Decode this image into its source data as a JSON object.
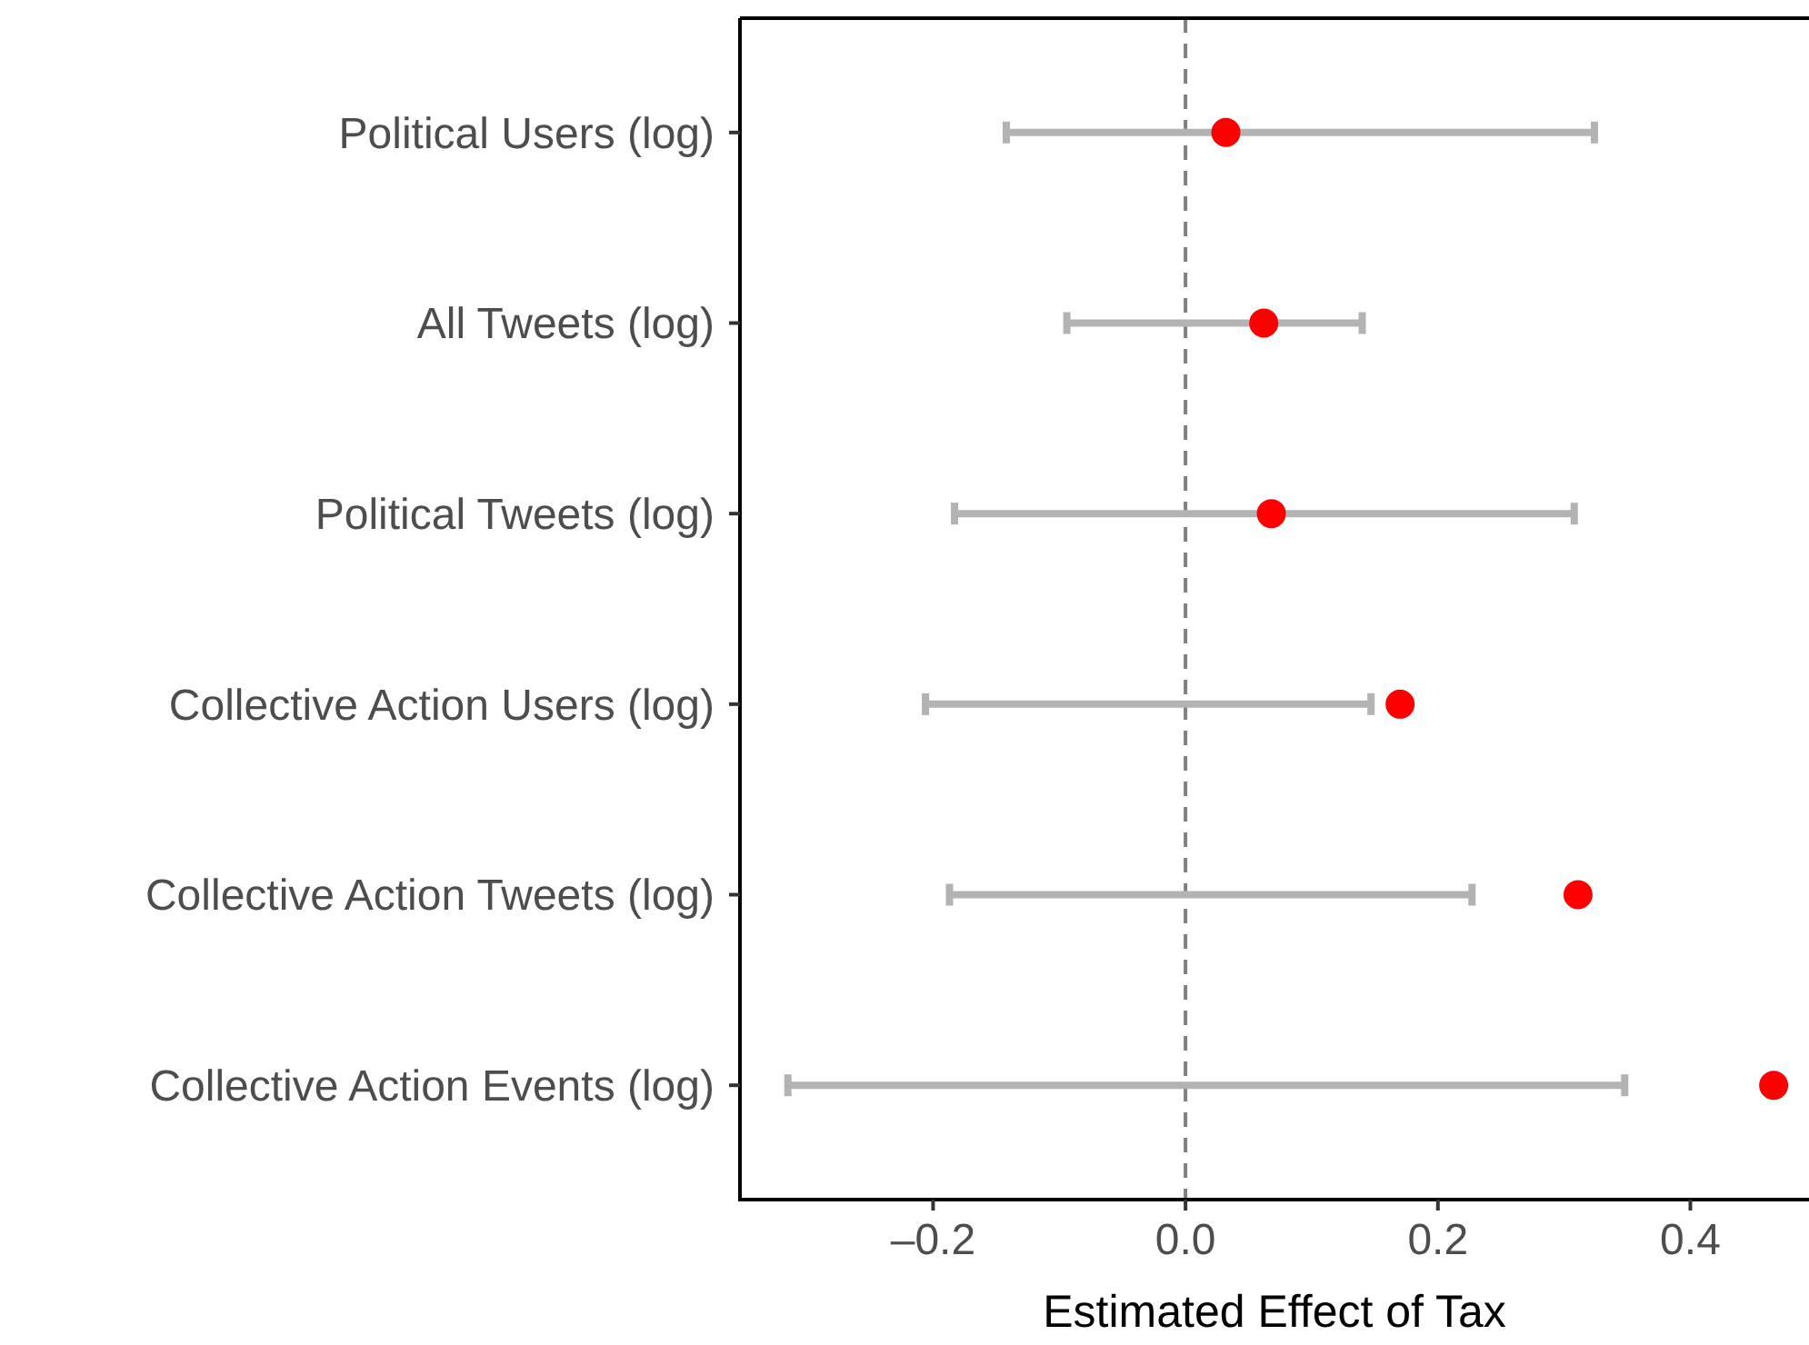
{
  "chart_data": {
    "type": "scatter",
    "orientation": "horizontal",
    "xlabel": "Estimated Effect of Tax",
    "categories": [
      "Political Users (log)",
      "All Tweets (log)",
      "Political Tweets (log)",
      "Collective Action Users (log)",
      "Collective Action Tweets (log)",
      "Collective Action Events (log)"
    ],
    "series": [
      {
        "color": "#ff0000",
        "values": [
          0.032,
          0.062,
          0.068,
          0.17,
          0.311,
          0.466
        ],
        "errors": [
          [
            -0.142,
            0.324
          ],
          [
            -0.094,
            0.14
          ],
          [
            -0.183,
            0.308
          ],
          [
            -0.206,
            0.147
          ],
          [
            -0.187,
            0.227
          ],
          [
            -0.315,
            0.348
          ]
        ]
      }
    ],
    "xlim": [
      -0.353,
      0.494
    ],
    "xticks": [
      {
        "value": -0.2,
        "label": "–0.2"
      },
      {
        "value": 0,
        "label": "0.0"
      },
      {
        "value": 0.2,
        "label": "0.2"
      },
      {
        "value": 0.4,
        "label": "0.4"
      }
    ],
    "ref_lines": [
      {
        "axis": "x",
        "value": 0,
        "color": "#808080",
        "line_style": "dashed"
      }
    ],
    "marker": "circle"
  }
}
